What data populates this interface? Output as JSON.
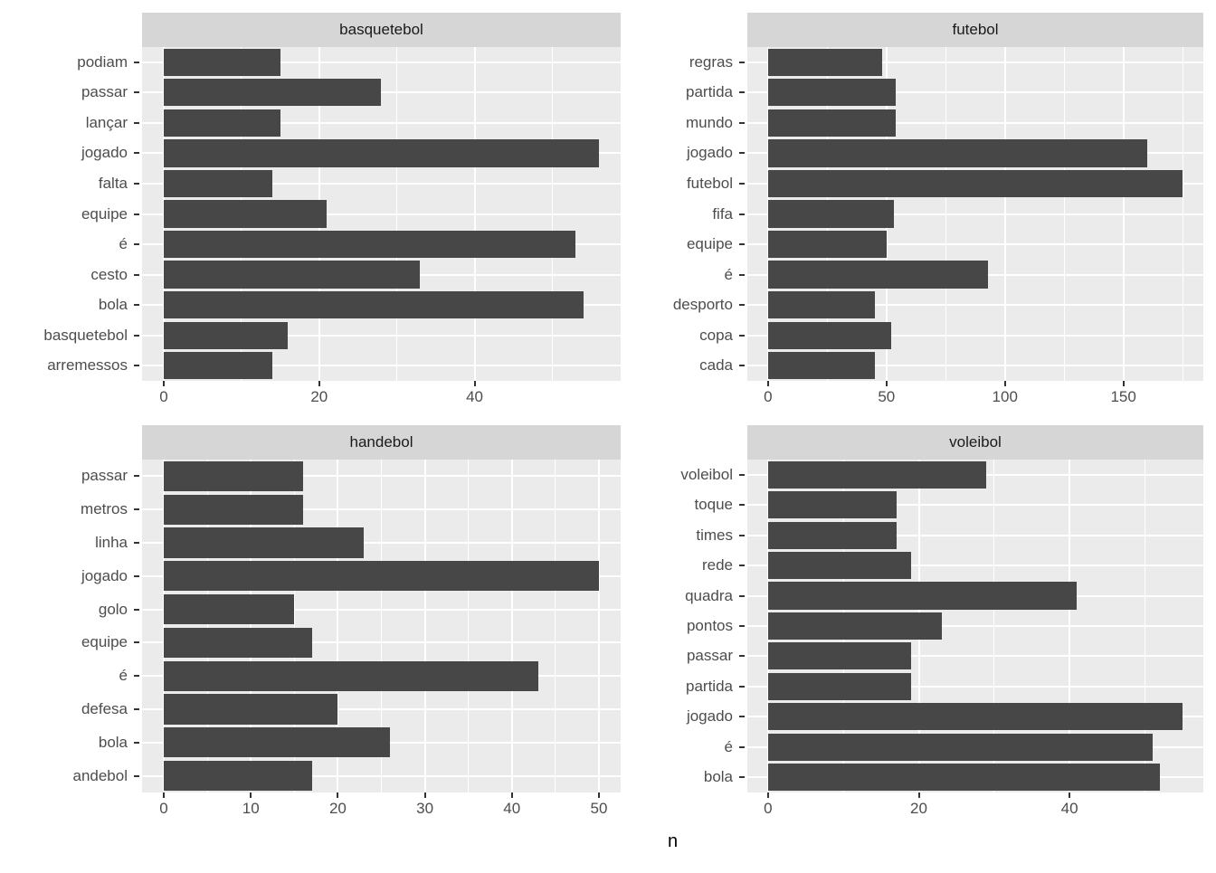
{
  "xlabel": "n",
  "style": {
    "bar_color": "#474747",
    "panel_bg": "#EBEBEB",
    "strip_bg": "#D6D6D6",
    "grid_color": "#FFFFFF",
    "axis_text_color": "#4D4D4D",
    "strip_text_color": "#1A1A1A",
    "tick_color": "#333333"
  },
  "chart_data": [
    {
      "type": "bar",
      "orientation": "horizontal",
      "facet": "basquetebol",
      "categories": [
        "podiam",
        "passar",
        "lançar",
        "jogado",
        "falta",
        "equipe",
        "é",
        "cesto",
        "bola",
        "basquetebol",
        "arremessos"
      ],
      "values": [
        15,
        28,
        15,
        56,
        14,
        21,
        53,
        33,
        54,
        16,
        14
      ],
      "x_major_ticks": [
        0,
        20,
        40
      ],
      "x_minor_ticks": [
        10,
        30,
        50
      ],
      "x_data_max": 56,
      "xlim": [
        -2.8,
        58.8
      ],
      "grid": "on",
      "bar_width": 0.9
    },
    {
      "type": "bar",
      "orientation": "horizontal",
      "facet": "futebol",
      "categories": [
        "regras",
        "partida",
        "mundo",
        "jogado",
        "futebol",
        "fifa",
        "equipe",
        "é",
        "desporto",
        "copa",
        "cada"
      ],
      "values": [
        48,
        54,
        54,
        160,
        175,
        53,
        50,
        93,
        45,
        52,
        45
      ],
      "x_major_ticks": [
        0,
        50,
        100,
        150
      ],
      "x_minor_ticks": [
        25,
        75,
        125,
        175
      ],
      "x_data_max": 175,
      "xlim": [
        -8.75,
        183.75
      ],
      "grid": "on",
      "bar_width": 0.9
    },
    {
      "type": "bar",
      "orientation": "horizontal",
      "facet": "handebol",
      "categories": [
        "passar",
        "metros",
        "linha",
        "jogado",
        "golo",
        "equipe",
        "é",
        "defesa",
        "bola",
        "andebol"
      ],
      "values": [
        16,
        16,
        23,
        50,
        15,
        17,
        43,
        20,
        26,
        17
      ],
      "x_major_ticks": [
        0,
        10,
        20,
        30,
        40,
        50
      ],
      "x_minor_ticks": [
        5,
        15,
        25,
        35,
        45
      ],
      "x_data_max": 50,
      "xlim": [
        -2.5,
        52.5
      ],
      "grid": "on",
      "bar_width": 0.9
    },
    {
      "type": "bar",
      "orientation": "horizontal",
      "facet": "voleibol",
      "categories": [
        "voleibol",
        "toque",
        "times",
        "rede",
        "quadra",
        "pontos",
        "passar",
        "partida",
        "jogado",
        "é",
        "bola"
      ],
      "values": [
        29,
        17,
        17,
        19,
        41,
        23,
        19,
        19,
        55,
        51,
        52
      ],
      "x_major_ticks": [
        0,
        20,
        40
      ],
      "x_minor_ticks": [
        10,
        30,
        50
      ],
      "x_data_max": 55,
      "xlim": [
        -2.75,
        57.75
      ],
      "grid": "on",
      "bar_width": 0.9
    }
  ]
}
